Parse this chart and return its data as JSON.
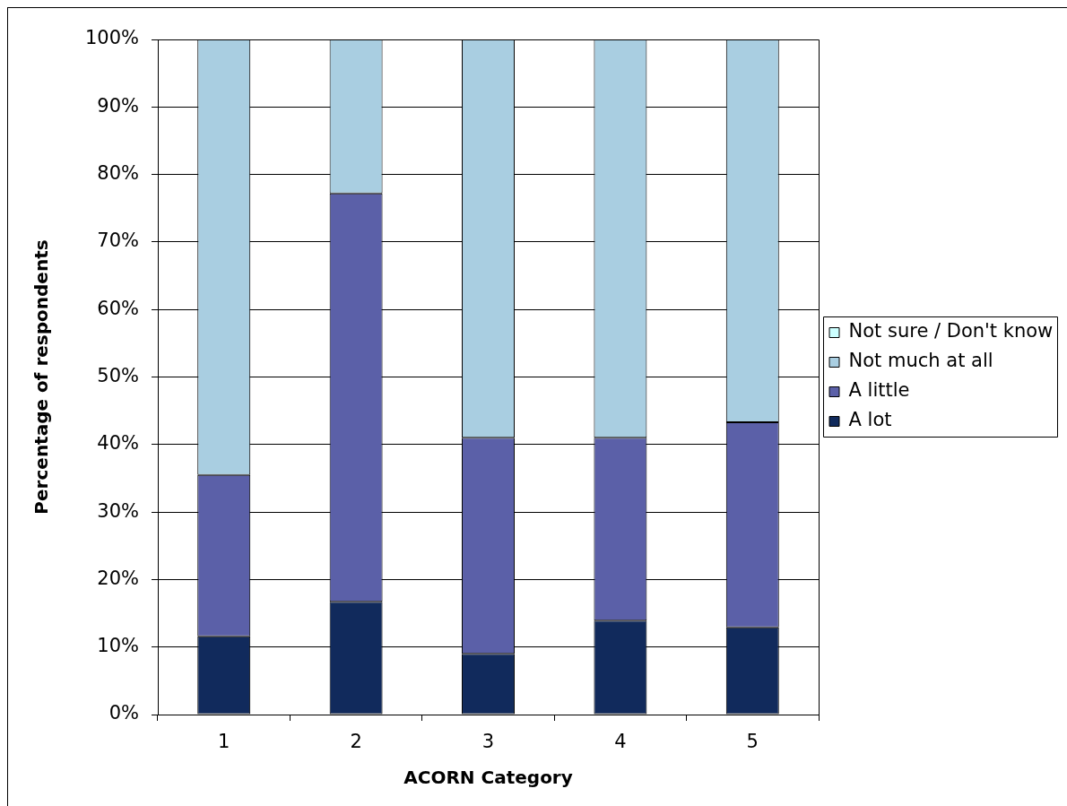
{
  "chart_data": {
    "type": "bar",
    "xlabel": "ACORN Category",
    "ylabel": "Percentage of respondents",
    "categories": [
      "1",
      "2",
      "3",
      "4",
      "5"
    ],
    "series": [
      {
        "name": "A lot",
        "color": "#112a5c",
        "values": [
          11.6,
          16.7,
          9.0,
          13.9,
          12.9
        ]
      },
      {
        "name": "A little",
        "color": "#5b60a8",
        "values": [
          23.9,
          60.5,
          32.0,
          27.1,
          30.4
        ]
      },
      {
        "name": "Not much at all",
        "color": "#a9cee1",
        "values": [
          64.5,
          22.8,
          59.0,
          59.0,
          56.7
        ]
      },
      {
        "name": "Not sure / Don't know",
        "color": "#ccffff",
        "values": [
          0,
          0,
          0,
          0,
          0
        ]
      }
    ],
    "stacked": true,
    "ylim": [
      0,
      100
    ],
    "yticks": [
      {
        "value": 0,
        "label": "0%"
      },
      {
        "value": 10,
        "label": "10%"
      },
      {
        "value": 20,
        "label": "20%"
      },
      {
        "value": 30,
        "label": "30%"
      },
      {
        "value": 40,
        "label": "40%"
      },
      {
        "value": 50,
        "label": "50%"
      },
      {
        "value": 60,
        "label": "60%"
      },
      {
        "value": 70,
        "label": "70%"
      },
      {
        "value": 80,
        "label": "80%"
      },
      {
        "value": 90,
        "label": "90%"
      },
      {
        "value": 100,
        "label": "100%"
      }
    ],
    "grid": "y",
    "legend": "right"
  }
}
